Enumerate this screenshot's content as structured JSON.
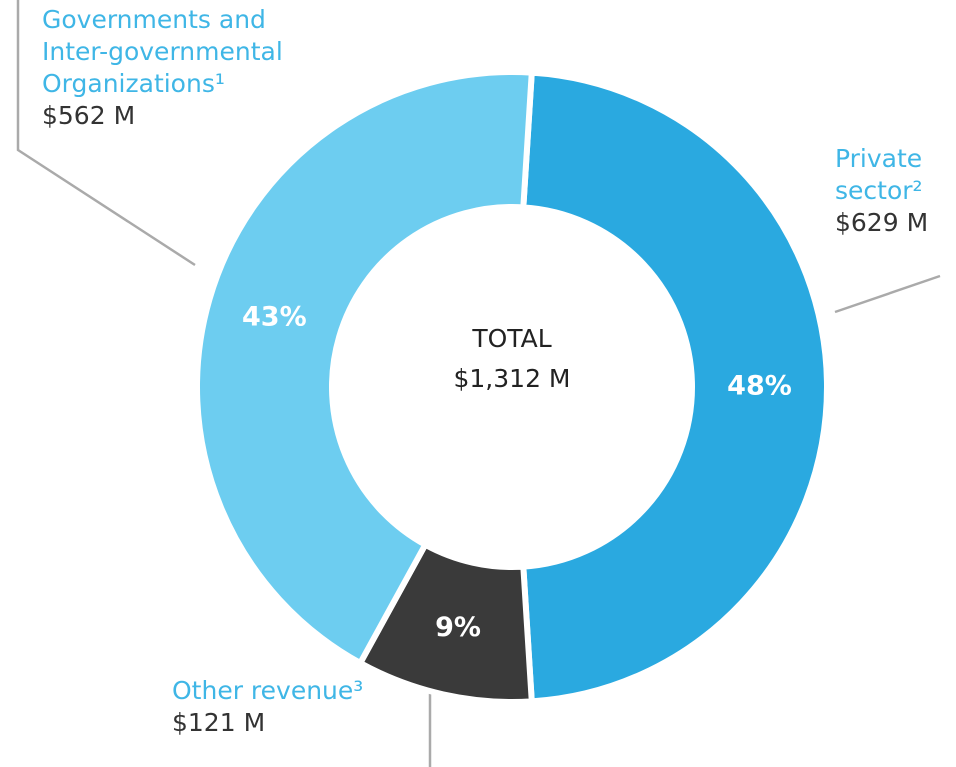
{
  "chart_data": {
    "type": "donut",
    "center_label": "TOTAL",
    "total_label": "$1,312 M",
    "categories": [
      "Private sector²",
      "Other revenue³",
      "Governments and Inter-governmental Organizations¹"
    ],
    "values": [
      48,
      9,
      43
    ],
    "value_labels": [
      "48%",
      "9%",
      "43%"
    ],
    "amount_labels": [
      "$629 M",
      "$121 M",
      "$562 M"
    ],
    "colors": [
      "#2aa9e0",
      "#3a3a3a",
      "#6dcdf0"
    ]
  }
}
